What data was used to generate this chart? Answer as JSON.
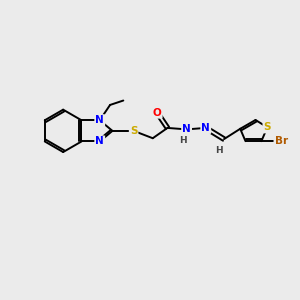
{
  "background_color": "#ebebeb",
  "bond_color": "#000000",
  "atom_colors": {
    "N": "#0000ff",
    "O": "#ff0000",
    "S": "#ccaa00",
    "Br": "#b05a00",
    "H": "#444444"
  },
  "figsize": [
    3.0,
    3.0
  ],
  "dpi": 100,
  "lw": 1.4,
  "fs": 7.5
}
